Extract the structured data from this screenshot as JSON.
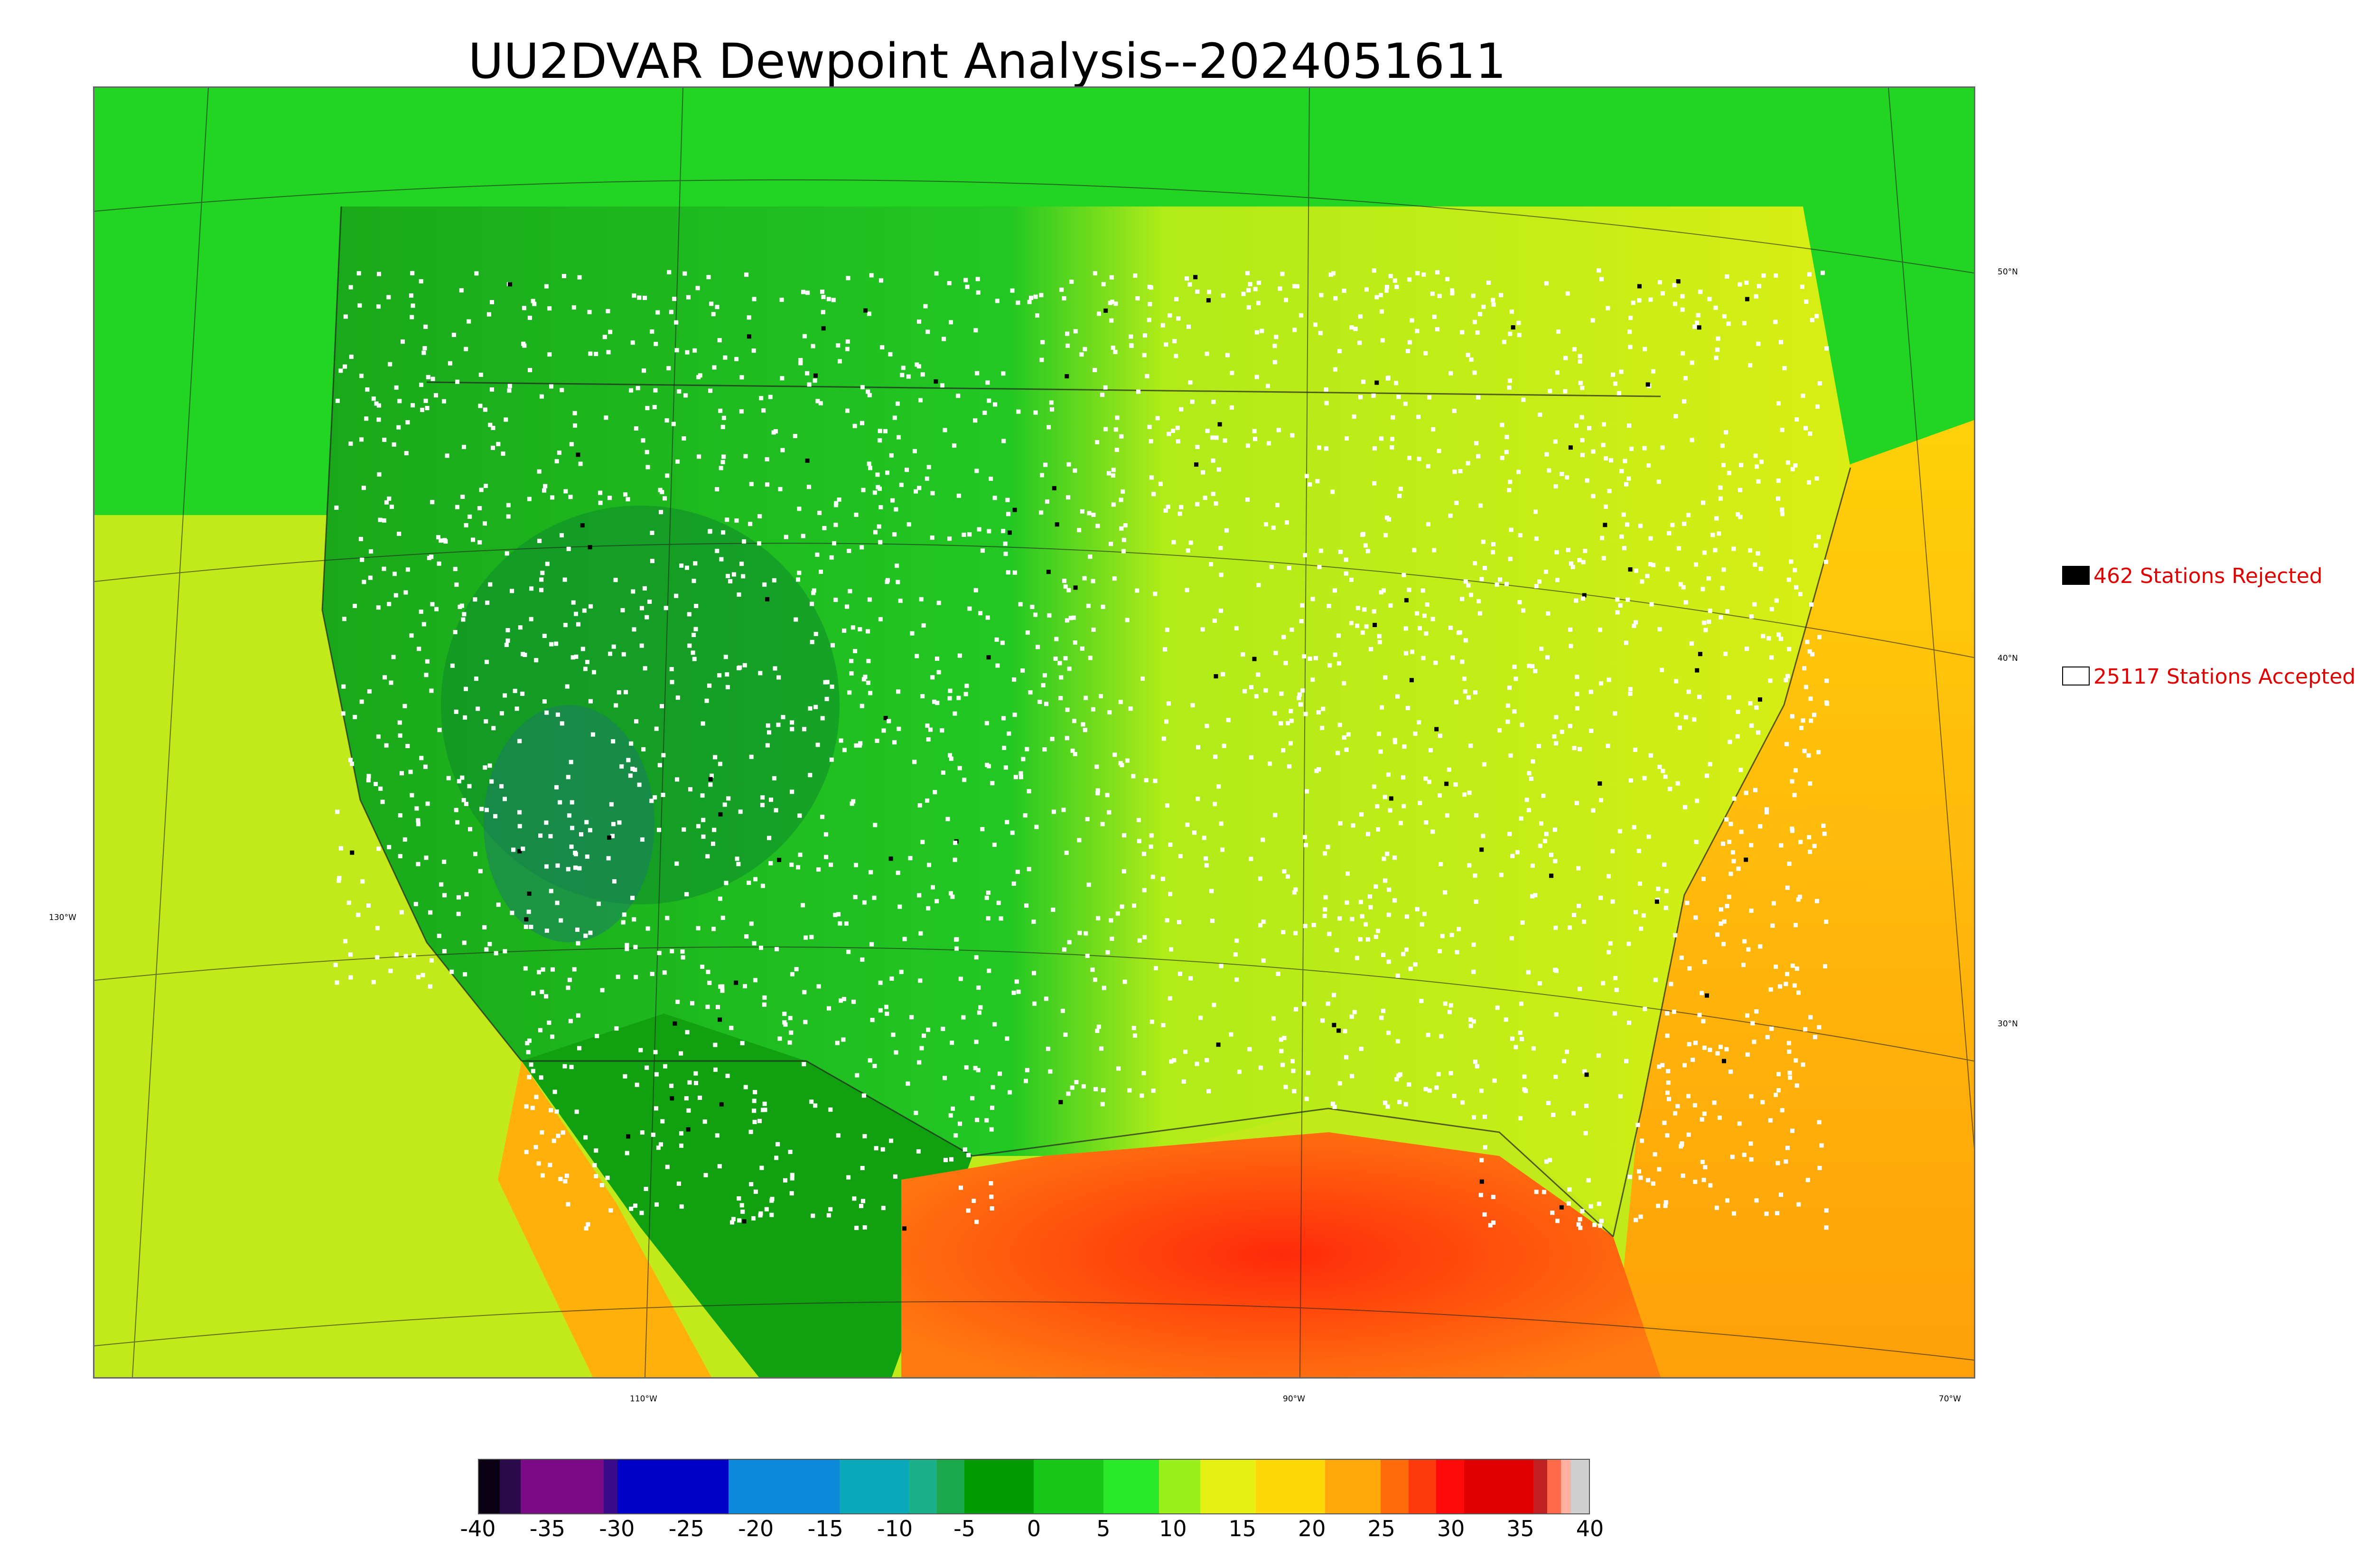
{
  "title": "UU2DVAR Dewpoint Analysis--2024051611",
  "map": {
    "lat_labels": [
      "50°N",
      "40°N",
      "30°N"
    ],
    "lon_labels": [
      "110°W",
      "90°W",
      "70°W"
    ],
    "left_lon_label": "130°W",
    "colors": {
      "ocean_pacific": "#c2ea1a",
      "land_west": "#1fb41f",
      "land_north": "#22d522",
      "land_east": "#c8ee18",
      "gulf": "#ff4a10",
      "atlantic": "#ffb80a",
      "station_accepted": "#ffffff",
      "station_rejected": "#000000"
    }
  },
  "legend": {
    "rejected_label": "462 Stations Rejected",
    "accepted_label": "25117 Stations Accepted",
    "rejected_color": "#000000",
    "accepted_color": "#ffffff"
  },
  "colorbar": {
    "min": -40,
    "max": 40,
    "tick_labels": [
      "-40",
      "-35",
      "-30",
      "-25",
      "-20",
      "-15",
      "-10",
      "-5",
      "0",
      "5",
      "10",
      "15",
      "20",
      "25",
      "30",
      "35",
      "40"
    ],
    "segments": [
      {
        "from": -40,
        "to": -38.5,
        "color": "#0a0014"
      },
      {
        "from": -38.5,
        "to": -37,
        "color": "#2a0a4a"
      },
      {
        "from": -37,
        "to": -31,
        "color": "#7a0a86"
      },
      {
        "from": -31,
        "to": -30,
        "color": "#3a0a8a"
      },
      {
        "from": -30,
        "to": -22,
        "color": "#0000c8"
      },
      {
        "from": -22,
        "to": -14,
        "color": "#0a8ad8"
      },
      {
        "from": -14,
        "to": -9,
        "color": "#0aa8b8"
      },
      {
        "from": -9,
        "to": -7,
        "color": "#1ab08a"
      },
      {
        "from": -7,
        "to": -5,
        "color": "#1aa84a"
      },
      {
        "from": -5,
        "to": 0,
        "color": "#049a04"
      },
      {
        "from": 0,
        "to": 5,
        "color": "#18c818"
      },
      {
        "from": 5,
        "to": 9,
        "color": "#2ae82a"
      },
      {
        "from": 9,
        "to": 12,
        "color": "#9af01a"
      },
      {
        "from": 12,
        "to": 16,
        "color": "#e6f014"
      },
      {
        "from": 16,
        "to": 21,
        "color": "#ffd80a"
      },
      {
        "from": 21,
        "to": 25,
        "color": "#ffaa0a"
      },
      {
        "from": 25,
        "to": 27,
        "color": "#ff6a0a"
      },
      {
        "from": 27,
        "to": 29,
        "color": "#ff3a0a"
      },
      {
        "from": 29,
        "to": 31,
        "color": "#ff0a0a"
      },
      {
        "from": 31,
        "to": 36,
        "color": "#e00000"
      },
      {
        "from": 36,
        "to": 37,
        "color": "#c02020"
      },
      {
        "from": 37,
        "to": 38,
        "color": "#ff6a4a"
      },
      {
        "from": 38,
        "to": 38.7,
        "color": "#ffb0a0"
      },
      {
        "from": 38.7,
        "to": 40,
        "color": "#cfcfcf"
      }
    ]
  }
}
